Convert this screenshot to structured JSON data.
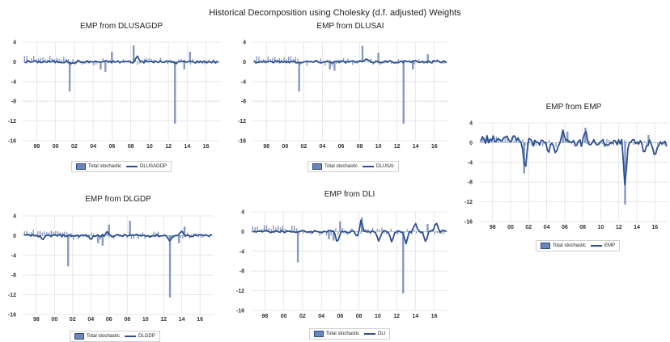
{
  "title": "Historical Decomposition using Cholesky (d.f. adjusted) Weights",
  "colors": {
    "bar": "#8a9bc0",
    "bar_stroke": "#6f82ab",
    "line": "#2b4f94",
    "grid": "#e2e2e2",
    "zero": "#bdbdbd"
  },
  "legend": {
    "bar_label": "Total stochastic"
  },
  "chart_data": [
    {
      "type": "bar",
      "title": "EMP from DLUSAGDP",
      "series": [
        {
          "name": "Total stochastic"
        },
        {
          "name": "DLUSAGDP"
        }
      ],
      "ylim": [
        -16,
        4
      ],
      "yticks": [
        "4",
        "0",
        "-4",
        "-8",
        "-12",
        "-16"
      ],
      "xticks": [
        "98",
        "00",
        "02",
        "04",
        "06",
        "08",
        "10",
        "12",
        "14",
        "16"
      ],
      "x_range": [
        1997,
        2018
      ],
      "spikes": [
        [
          2002,
          -6.0
        ],
        [
          2005.3,
          -1.5
        ],
        [
          2005.8,
          -2.0
        ],
        [
          2006.5,
          2.0
        ],
        [
          2008.8,
          3.3
        ],
        [
          2013.2,
          -12.5
        ],
        [
          2014.8,
          2.0
        ],
        [
          2014.2,
          -1.5
        ]
      ],
      "line_peaks": [
        [
          2009.2,
          1.2
        ],
        [
          2002.2,
          -0.4
        ],
        [
          2013.3,
          -0.4
        ]
      ]
    },
    {
      "type": "bar",
      "title": "EMP from DLUSAI",
      "series": [
        {
          "name": "Total stochastic"
        },
        {
          "name": "DLUSAI"
        }
      ],
      "ylim": [
        -16,
        4
      ],
      "yticks": [
        "4",
        "0",
        "-4",
        "-8",
        "-12",
        "-16"
      ],
      "xticks": [
        "98",
        "00",
        "02",
        "04",
        "06",
        "08",
        "10",
        "12",
        "14",
        "16"
      ],
      "x_range": [
        1997,
        2018
      ],
      "spikes": [
        [
          2002,
          -6.0
        ],
        [
          2005.3,
          -1.5
        ],
        [
          2005.8,
          -1.8
        ],
        [
          2008.8,
          3.2
        ],
        [
          2010.5,
          1.8
        ],
        [
          2013.2,
          -12.5
        ],
        [
          2014.2,
          -1.5
        ],
        [
          2015.8,
          1.5
        ]
      ],
      "line_peaks": [
        [
          2009.2,
          0.6
        ],
        [
          2002.2,
          -0.2
        ]
      ]
    },
    {
      "type": "bar",
      "title": "EMP from EMP",
      "series": [
        {
          "name": "Total stochastic"
        },
        {
          "name": "EMP"
        }
      ],
      "ylim": [
        -16,
        4
      ],
      "yticks": [
        "4",
        "0",
        "-4",
        "-8",
        "-12",
        "-16"
      ],
      "xticks": [
        "98",
        "00",
        "02",
        "04",
        "06",
        "08",
        "10",
        "12",
        "14",
        "16"
      ],
      "x_range": [
        1997,
        2018
      ],
      "spikes": [
        [
          2002,
          -6.2
        ],
        [
          2006.3,
          2.6
        ],
        [
          2006.8,
          2.2
        ],
        [
          2008.8,
          3.0
        ],
        [
          2013.2,
          -12.5
        ],
        [
          2015.8,
          1.5
        ]
      ],
      "line_peaks": [
        [
          2002.1,
          -6.0
        ],
        [
          2006.3,
          2.5
        ],
        [
          2008.8,
          2.8
        ],
        [
          2013.2,
          -9.5
        ],
        [
          2004.7,
          -2.2
        ],
        [
          2005.5,
          -2.5
        ],
        [
          2016.5,
          -3.0
        ],
        [
          2015.3,
          -2.2
        ]
      ]
    },
    {
      "type": "bar",
      "title": "EMP from DLGDP",
      "series": [
        {
          "name": "Total stochastic"
        },
        {
          "name": "DLGDP"
        }
      ],
      "ylim": [
        -16,
        4
      ],
      "yticks": [
        "4",
        "0",
        "-4",
        "-8",
        "-12",
        "-16"
      ],
      "xticks": [
        "98",
        "00",
        "02",
        "04",
        "06",
        "08",
        "10",
        "12",
        "14",
        "16"
      ],
      "x_range": [
        1997,
        2018
      ],
      "spikes": [
        [
          2002,
          -6.2
        ],
        [
          2005.3,
          -1.5
        ],
        [
          2005.8,
          -2.0
        ],
        [
          2006.5,
          2.2
        ],
        [
          2008.8,
          3.0
        ],
        [
          2013.2,
          -12.5
        ],
        [
          2014.8,
          1.8
        ],
        [
          2014.2,
          -1.5
        ]
      ],
      "line_peaks": [
        [
          1999.2,
          -1.0
        ],
        [
          2004.5,
          -0.9
        ],
        [
          2006.3,
          0.8
        ],
        [
          2014.5,
          1.0
        ],
        [
          2013.2,
          -1.2
        ]
      ]
    },
    {
      "type": "bar",
      "title": "EMP from DLI",
      "series": [
        {
          "name": "Total stochastic"
        },
        {
          "name": "DLI"
        }
      ],
      "ylim": [
        -16,
        4
      ],
      "yticks": [
        "4",
        "0",
        "-4",
        "-8",
        "-12",
        "-16"
      ],
      "xticks": [
        "98",
        "00",
        "02",
        "04",
        "06",
        "08",
        "10",
        "12",
        "14",
        "16"
      ],
      "x_range": [
        1997,
        2018
      ],
      "spikes": [
        [
          2002,
          -6.2
        ],
        [
          2005.3,
          -1.5
        ],
        [
          2005.8,
          -1.8
        ],
        [
          2006.5,
          2.0
        ],
        [
          2008.8,
          2.8
        ],
        [
          2013.2,
          -12.5
        ],
        [
          2015.8,
          1.5
        ]
      ],
      "line_peaks": [
        [
          2006.2,
          -2.4
        ],
        [
          2008.7,
          2.3
        ],
        [
          2008.3,
          -1.0
        ],
        [
          2010.6,
          -2.0
        ],
        [
          2012.0,
          -2.3
        ],
        [
          2013.5,
          -2.5
        ],
        [
          2014.5,
          1.8
        ],
        [
          2015.6,
          -2.2
        ],
        [
          2016.7,
          2.0
        ]
      ]
    }
  ]
}
